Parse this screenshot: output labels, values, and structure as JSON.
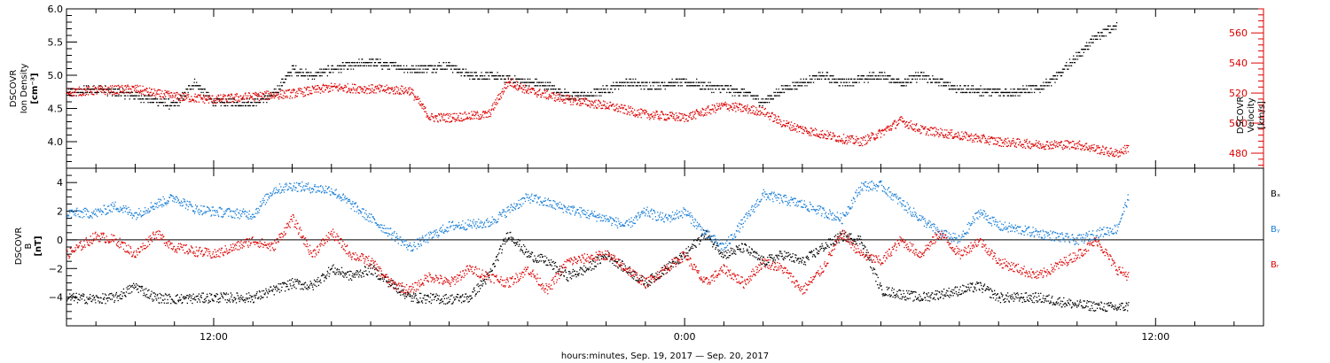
{
  "xlabel": "hours:minutes, Sep. 19, 2017 — Sep. 20, 2017",
  "chart_data": [
    {
      "type": "scatter",
      "panel": "plasma",
      "xlim_hours": [
        8.25,
        38.75
      ],
      "x_tick_labels": [
        "12:00",
        "0:00",
        "12:00"
      ],
      "left_axis": {
        "label_lines": [
          "DSCOVR",
          "Ion Density",
          "[cm⁻³]"
        ],
        "ylim": [
          3.6,
          6.0
        ],
        "tick_labels": [
          "4.0",
          "4.5",
          "5.0",
          "5.5",
          "6.0"
        ],
        "color": "#000000"
      },
      "right_axis": {
        "label_lines": [
          "DSCOVR",
          "Velocity",
          "[km/s]"
        ],
        "ylim": [
          470,
          576
        ],
        "tick_labels": [
          "480",
          "500",
          "520",
          "540",
          "560"
        ],
        "color": "#dd0000"
      },
      "series": [
        {
          "color": "#000000",
          "axis": "left",
          "points": [
            [
              8.25,
              4.75
            ],
            [
              9,
              4.8
            ],
            [
              10,
              4.7
            ],
            [
              11,
              4.55
            ],
            [
              11.5,
              4.9
            ],
            [
              12,
              4.6
            ],
            [
              13,
              4.6
            ],
            [
              13.5,
              4.7
            ],
            [
              14,
              5.1
            ],
            [
              14.5,
              5.0
            ],
            [
              15,
              5.1
            ],
            [
              16,
              5.2
            ],
            [
              17,
              5.1
            ],
            [
              18,
              5.15
            ],
            [
              18.5,
              5.0
            ],
            [
              19,
              5.0
            ],
            [
              20,
              4.9
            ],
            [
              20.5,
              4.85
            ],
            [
              21,
              4.7
            ],
            [
              21.5,
              4.7
            ],
            [
              22,
              4.8
            ],
            [
              22.5,
              4.9
            ],
            [
              23,
              4.85
            ],
            [
              24,
              4.9
            ],
            [
              25,
              4.8
            ],
            [
              25.5,
              4.75
            ],
            [
              26,
              4.6
            ],
            [
              26.5,
              4.8
            ],
            [
              27,
              4.9
            ],
            [
              27.5,
              5.0
            ],
            [
              28,
              4.9
            ],
            [
              29,
              5.0
            ],
            [
              29.5,
              4.9
            ],
            [
              30,
              5.0
            ],
            [
              31,
              4.8
            ],
            [
              32,
              4.75
            ],
            [
              33,
              4.8
            ],
            [
              33.5,
              5.0
            ],
            [
              34,
              5.3
            ],
            [
              34.5,
              5.6
            ],
            [
              35,
              5.75
            ]
          ]
        },
        {
          "color": "#dd0000",
          "axis": "right",
          "points": [
            [
              8.25,
              521
            ],
            [
              9,
              522
            ],
            [
              10,
              523
            ],
            [
              10.5,
              520
            ],
            [
              11,
              518
            ],
            [
              12,
              516
            ],
            [
              13,
              518
            ],
            [
              14,
              520
            ],
            [
              15,
              524
            ],
            [
              16,
              523
            ],
            [
              17,
              522
            ],
            [
              17.5,
              504
            ],
            [
              18,
              504
            ],
            [
              19,
              506
            ],
            [
              19.5,
              528
            ],
            [
              20,
              522
            ],
            [
              21,
              516
            ],
            [
              22,
              512
            ],
            [
              23,
              506
            ],
            [
              24,
              504
            ],
            [
              24.5,
              508
            ],
            [
              25,
              512
            ],
            [
              26,
              508
            ],
            [
              26.5,
              500
            ],
            [
              27,
              496
            ],
            [
              28,
              490
            ],
            [
              28.5,
              488
            ],
            [
              29,
              494
            ],
            [
              29.5,
              502
            ],
            [
              30,
              496
            ],
            [
              31,
              492
            ],
            [
              32,
              488
            ],
            [
              33,
              486
            ],
            [
              34,
              486
            ],
            [
              35,
              480
            ],
            [
              35.3,
              484
            ]
          ]
        }
      ]
    },
    {
      "type": "scatter",
      "panel": "magnetic",
      "xlim_hours": [
        8.25,
        38.75
      ],
      "x_tick_labels": [
        "12:00",
        "0:00",
        "12:00"
      ],
      "y_axis": {
        "label_lines": [
          "DSCOVR",
          "B",
          "[nT]"
        ],
        "ylim": [
          -6,
          5
        ],
        "tick_labels": [
          "−4",
          "−2",
          "0",
          "2",
          "4"
        ]
      },
      "zero_line": true,
      "series": [
        {
          "name": "Bₓ",
          "color": "#000000",
          "points": [
            [
              8.25,
              -4.0
            ],
            [
              9,
              -4.1
            ],
            [
              9.5,
              -4.0
            ],
            [
              10,
              -3.2
            ],
            [
              10.5,
              -4.0
            ],
            [
              11,
              -4.1
            ],
            [
              12,
              -4.0
            ],
            [
              13,
              -4.0
            ],
            [
              13.5,
              -3.5
            ],
            [
              14,
              -3.0
            ],
            [
              14.5,
              -3.2
            ],
            [
              15,
              -2.0
            ],
            [
              15.5,
              -2.5
            ],
            [
              16,
              -2.0
            ],
            [
              17,
              -4.0
            ],
            [
              18,
              -4.1
            ],
            [
              18.5,
              -4.0
            ],
            [
              19,
              -2.5
            ],
            [
              19.5,
              0.5
            ],
            [
              20,
              -1.0
            ],
            [
              20.5,
              -1.5
            ],
            [
              21,
              -2.5
            ],
            [
              21.5,
              -2.0
            ],
            [
              22,
              -1.0
            ],
            [
              23,
              -3.0
            ],
            [
              24,
              -1.0
            ],
            [
              24.5,
              0.5
            ],
            [
              25,
              -1.0
            ],
            [
              25.5,
              -0.5
            ],
            [
              26,
              -1.5
            ],
            [
              26.5,
              -1.0
            ],
            [
              27,
              -1.5
            ],
            [
              27.5,
              -0.5
            ],
            [
              28,
              0.3
            ],
            [
              28.5,
              0.0
            ],
            [
              29,
              -3.5
            ],
            [
              30,
              -4.0
            ],
            [
              31,
              -3.5
            ],
            [
              31.5,
              -3.2
            ],
            [
              32,
              -4.0
            ],
            [
              33,
              -4.0
            ],
            [
              34,
              -4.5
            ],
            [
              35,
              -4.7
            ],
            [
              35.3,
              -4.6
            ]
          ]
        },
        {
          "name": "Bᵧ",
          "color": "#1a7ed6",
          "points": [
            [
              8.25,
              1.9
            ],
            [
              9,
              1.9
            ],
            [
              9.5,
              2.4
            ],
            [
              10,
              1.8
            ],
            [
              10.5,
              2.5
            ],
            [
              11,
              3.0
            ],
            [
              11.5,
              2.2
            ],
            [
              12,
              2.0
            ],
            [
              13,
              1.8
            ],
            [
              13.5,
              3.5
            ],
            [
              14,
              3.8
            ],
            [
              15,
              3.5
            ],
            [
              16,
              1.5
            ],
            [
              17,
              -0.5
            ],
            [
              18,
              1.0
            ],
            [
              19,
              1.2
            ],
            [
              20,
              3.0
            ],
            [
              21,
              2.2
            ],
            [
              22,
              1.5
            ],
            [
              22.5,
              1.0
            ],
            [
              23,
              2.0
            ],
            [
              23.5,
              1.5
            ],
            [
              24,
              2.0
            ],
            [
              24.5,
              0.5
            ],
            [
              25,
              -0.5
            ],
            [
              26,
              3.2
            ],
            [
              27,
              2.5
            ],
            [
              28,
              1.5
            ],
            [
              28.5,
              3.8
            ],
            [
              29,
              3.8
            ],
            [
              30,
              1.5
            ],
            [
              30.5,
              0.5
            ],
            [
              31,
              0.0
            ],
            [
              31.5,
              2.0
            ],
            [
              32,
              1.0
            ],
            [
              33,
              0.5
            ],
            [
              34,
              0.0
            ],
            [
              34.5,
              0.5
            ],
            [
              35,
              0.8
            ],
            [
              35.3,
              3.0
            ]
          ]
        },
        {
          "name": "Bᵣ",
          "color": "#dd0000",
          "points": [
            [
              8.25,
              -1.0
            ],
            [
              9,
              0.3
            ],
            [
              9.5,
              0.0
            ],
            [
              10,
              -1.0
            ],
            [
              10.5,
              0.5
            ],
            [
              11,
              -0.5
            ],
            [
              12,
              -1.0
            ],
            [
              13,
              0.0
            ],
            [
              13.5,
              -0.5
            ],
            [
              14,
              1.5
            ],
            [
              14.5,
              -1.0
            ],
            [
              15,
              0.5
            ],
            [
              15.5,
              -1.0
            ],
            [
              16,
              -1.5
            ],
            [
              16.5,
              -3.0
            ],
            [
              17,
              -3.5
            ],
            [
              17.5,
              -2.5
            ],
            [
              18,
              -3.0
            ],
            [
              18.5,
              -2.0
            ],
            [
              19,
              -2.5
            ],
            [
              19.5,
              -3.0
            ],
            [
              20,
              -2.0
            ],
            [
              20.5,
              -3.5
            ],
            [
              21,
              -1.5
            ],
            [
              22,
              -1.0
            ],
            [
              22.5,
              -2.0
            ],
            [
              23,
              -3.0
            ],
            [
              24,
              -1.0
            ],
            [
              24.5,
              -3.0
            ],
            [
              25,
              -2.0
            ],
            [
              25.5,
              -3.0
            ],
            [
              26,
              -1.5
            ],
            [
              26.5,
              -2.0
            ],
            [
              27,
              -3.5
            ],
            [
              27.5,
              -2.0
            ],
            [
              28,
              0.5
            ],
            [
              28.5,
              -1.0
            ],
            [
              29,
              -1.5
            ],
            [
              29.5,
              0.0
            ],
            [
              30,
              -1.0
            ],
            [
              30.5,
              0.5
            ],
            [
              31,
              -1.0
            ],
            [
              31.5,
              0.0
            ],
            [
              32,
              -1.5
            ],
            [
              33,
              -2.5
            ],
            [
              34,
              -1.0
            ],
            [
              34.5,
              0.0
            ],
            [
              35,
              -2.0
            ],
            [
              35.3,
              -2.5
            ]
          ]
        }
      ]
    }
  ]
}
